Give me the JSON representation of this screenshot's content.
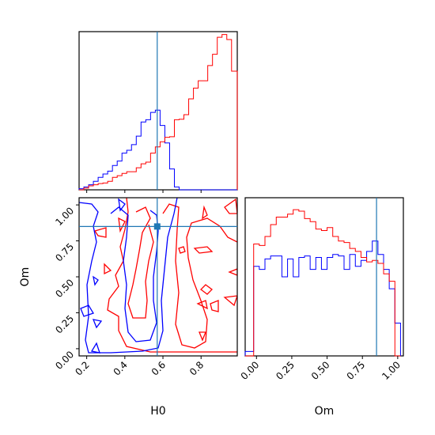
{
  "chart_data": {
    "type": "corner",
    "colors": {
      "sample_a": "#0000ff",
      "sample_b": "#ff0000",
      "truth": "#1f77b4"
    },
    "truth": {
      "H0": 0.57,
      "Om": 0.85
    },
    "labels": {
      "H0": "H0",
      "Om": "Om"
    },
    "panels": [
      {
        "kind": "histogram",
        "param": "H0",
        "xlim": [
          0.16,
          0.99
        ],
        "bin_edges": [
          0.16,
          0.185,
          0.21,
          0.235,
          0.26,
          0.285,
          0.31,
          0.335,
          0.36,
          0.385,
          0.41,
          0.435,
          0.46,
          0.485,
          0.51,
          0.535,
          0.56,
          0.585,
          0.61,
          0.635,
          0.66,
          0.685,
          0.71,
          0.735,
          0.76,
          0.785,
          0.81,
          0.835,
          0.86,
          0.885,
          0.91,
          0.935,
          0.96,
          0.99
        ],
        "series": [
          {
            "color": "blue",
            "values": [
              0.2,
              0.5,
              0.9,
              1.5,
              2.2,
              2.8,
              3.3,
              4.3,
              5.1,
              6.5,
              7.0,
              8.0,
              9.5,
              12.0,
              12.4,
              13.7,
              14.1,
              11.4,
              8.3,
              3.7,
              0.5,
              0,
              0,
              0,
              0,
              0,
              0,
              0,
              0,
              0,
              0,
              0,
              0
            ]
          },
          {
            "color": "red",
            "values": [
              0,
              0.3,
              0.7,
              0.9,
              1.1,
              1.2,
              1.5,
              2.2,
              2.5,
              2.9,
              3.2,
              3.2,
              3.9,
              4.6,
              4.9,
              6.5,
              7.6,
              8.5,
              9.3,
              9.4,
              12.4,
              12.5,
              13.3,
              16.1,
              18.0,
              19.3,
              19.3,
              22.0,
              24.0,
              27.0,
              27.5,
              26.6,
              21.0
            ]
          }
        ]
      },
      {
        "kind": "contour",
        "x": "H0",
        "y": "Om",
        "xlim": [
          0.16,
          0.99
        ],
        "ylim": [
          -0.05,
          1.05
        ],
        "truth": [
          0.57,
          0.85
        ]
      },
      {
        "kind": "histogram",
        "param": "Om",
        "xlim": [
          -0.08,
          1.04
        ],
        "bin_edges": [
          -0.08,
          -0.02,
          0.02,
          0.06,
          0.1,
          0.14,
          0.18,
          0.22,
          0.26,
          0.3,
          0.34,
          0.38,
          0.42,
          0.46,
          0.5,
          0.54,
          0.58,
          0.62,
          0.66,
          0.7,
          0.74,
          0.78,
          0.82,
          0.86,
          0.9,
          0.94,
          0.98,
          1.02
        ],
        "series": [
          {
            "color": "blue",
            "values": [
              0.03,
              0.6,
              0.58,
              0.65,
              0.67,
              0.67,
              0.53,
              0.65,
              0.53,
              0.66,
              0.67,
              0.58,
              0.66,
              0.58,
              0.66,
              0.68,
              0.67,
              0.58,
              0.68,
              0.6,
              0.64,
              0.7,
              0.77,
              0.68,
              0.58,
              0.45,
              0.22
            ]
          },
          {
            "color": "red",
            "values": [
              0,
              0.75,
              0.74,
              0.8,
              0.88,
              0.93,
              0.93,
              0.95,
              0.98,
              0.97,
              0.92,
              0.9,
              0.85,
              0.84,
              0.86,
              0.8,
              0.77,
              0.76,
              0.72,
              0.7,
              0.66,
              0.63,
              0.64,
              0.62,
              0.55,
              0.5,
              0
            ]
          }
        ]
      }
    ],
    "axes": {
      "x_left": {
        "label": "H0",
        "ticks": [
          "0.2",
          "0.4",
          "0.6",
          "0.8"
        ],
        "tick_values": [
          0.2,
          0.4,
          0.6,
          0.8
        ]
      },
      "y_left": {
        "label": "Om",
        "ticks": [
          "0.00",
          "0.25",
          "0.50",
          "0.75",
          "1.00"
        ],
        "tick_values": [
          0,
          0.25,
          0.5,
          0.75,
          1.0
        ]
      },
      "x_right": {
        "label": "Om",
        "ticks": [
          "0.00",
          "0.25",
          "0.50",
          "0.75",
          "1.00"
        ],
        "tick_values": [
          0,
          0.25,
          0.5,
          0.75,
          1.0
        ]
      }
    }
  }
}
